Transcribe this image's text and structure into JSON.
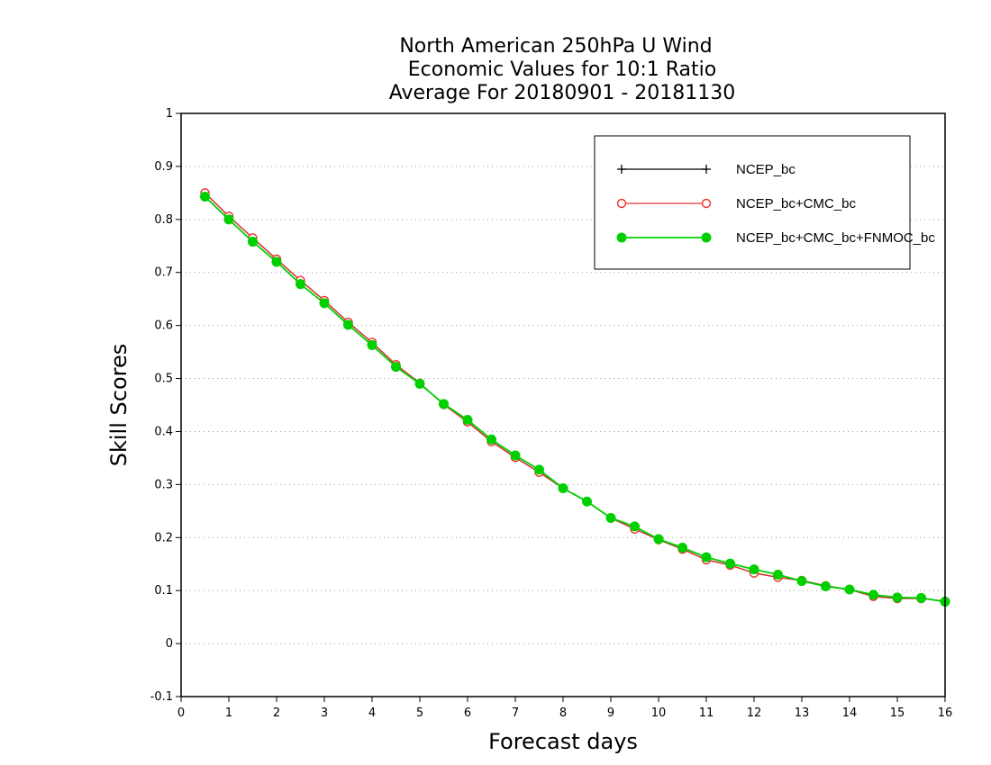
{
  "chart_data": {
    "type": "line",
    "title_lines": [
      "North American 250hPa U Wind",
      "Economic Values for 10:1 Ratio",
      "Average For 20180901 - 20181130"
    ],
    "xlabel": "Forecast days",
    "ylabel": "Skill Scores",
    "xlim": [
      0,
      16
    ],
    "ylim": [
      -0.1,
      1
    ],
    "x_ticks": [
      0,
      1,
      2,
      3,
      4,
      5,
      6,
      7,
      8,
      9,
      10,
      11,
      12,
      13,
      14,
      15,
      16
    ],
    "y_ticks": [
      -0.1,
      0,
      0.1,
      0.2,
      0.3,
      0.4,
      0.5,
      0.6,
      0.7,
      0.8,
      0.9,
      1
    ],
    "y_tick_labels": [
      "-0.1",
      "0",
      "0.1",
      "0.2",
      "0.3",
      "0.4",
      "0.5",
      "0.6",
      "0.7",
      "0.8",
      "0.9",
      "1"
    ],
    "grid": "horizontal dotted",
    "legend_position": "top-right",
    "x": [
      0.5,
      1,
      1.5,
      2,
      2.5,
      3,
      3.5,
      4,
      4.5,
      5,
      5.5,
      6,
      6.5,
      7,
      7.5,
      8,
      8.5,
      9,
      9.5,
      10,
      10.5,
      11,
      11.5,
      12,
      12.5,
      13,
      13.5,
      14,
      14.5,
      15,
      15.5,
      16
    ],
    "series": [
      {
        "name": "NCEP_bc",
        "color": "#000000",
        "marker": "plus",
        "values": [
          0.85,
          0.806,
          0.765,
          0.725,
          0.685,
          0.647,
          0.606,
          0.568,
          0.526,
          0.491,
          0.451,
          0.418,
          0.381,
          0.351,
          0.323,
          0.293,
          0.268,
          0.237,
          0.216,
          0.196,
          0.178,
          0.158,
          0.148,
          0.133,
          0.125,
          0.119,
          0.109,
          0.102,
          0.089,
          0.085,
          0.085,
          0.08
        ]
      },
      {
        "name": "NCEP_bc+CMC_bc",
        "color": "#e83030",
        "marker": "open-circle",
        "values": [
          0.85,
          0.806,
          0.765,
          0.725,
          0.685,
          0.647,
          0.606,
          0.568,
          0.526,
          0.491,
          0.451,
          0.418,
          0.381,
          0.351,
          0.323,
          0.293,
          0.268,
          0.237,
          0.216,
          0.196,
          0.178,
          0.158,
          0.148,
          0.133,
          0.125,
          0.119,
          0.109,
          0.102,
          0.089,
          0.085,
          0.085,
          0.08
        ]
      },
      {
        "name": "NCEP_bc+CMC_bc+FNMOC_bc",
        "color": "#00d000",
        "marker": "filled-circle",
        "values": [
          0.843,
          0.8,
          0.758,
          0.72,
          0.678,
          0.642,
          0.601,
          0.563,
          0.522,
          0.49,
          0.452,
          0.422,
          0.385,
          0.355,
          0.328,
          0.293,
          0.268,
          0.237,
          0.221,
          0.197,
          0.181,
          0.163,
          0.151,
          0.14,
          0.13,
          0.118,
          0.108,
          0.102,
          0.092,
          0.087,
          0.086,
          0.079
        ]
      }
    ]
  }
}
